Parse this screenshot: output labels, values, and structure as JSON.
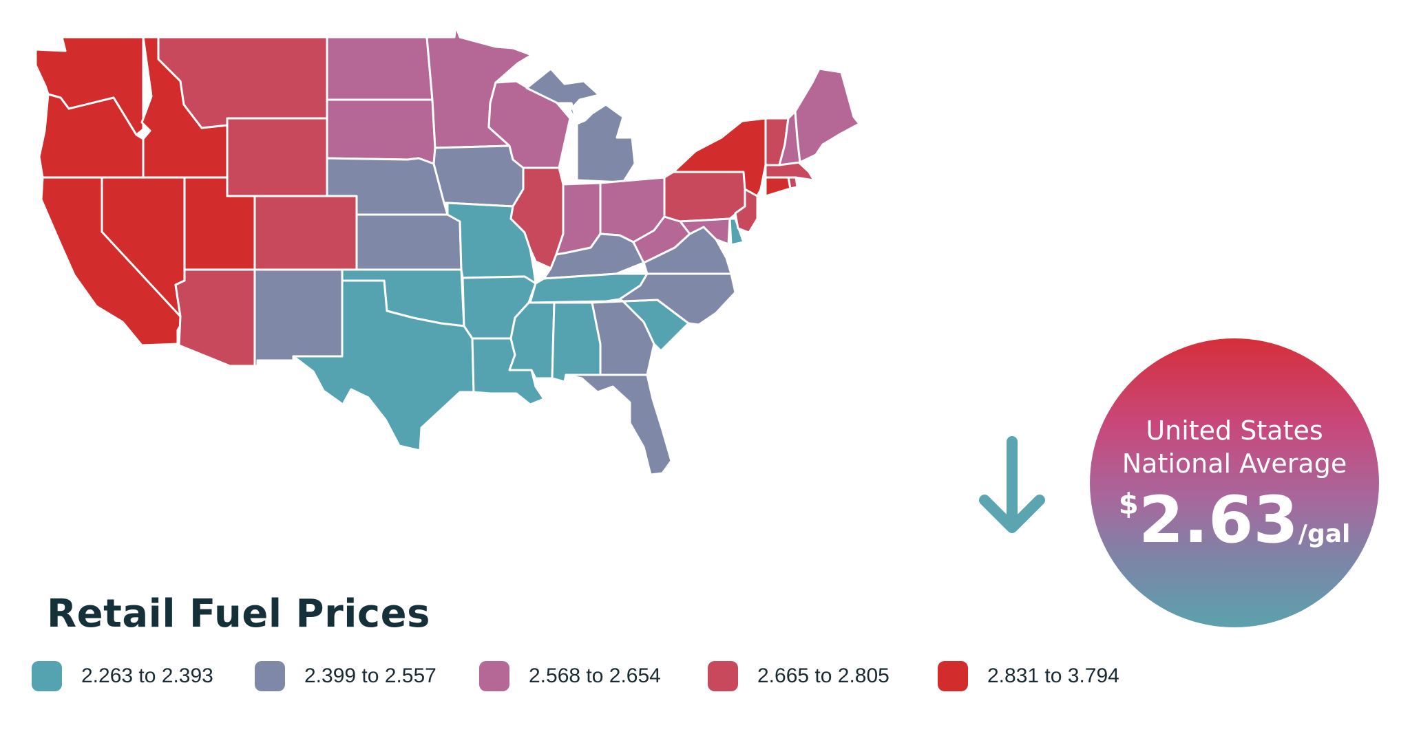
{
  "title": "Retail Fuel Prices",
  "colors": {
    "bin1": "#55a2b0",
    "bin2": "#7f88a6",
    "bin3": "#b56795",
    "bin4": "#c8485c",
    "bin5": "#d22c2c"
  },
  "legend": [
    {
      "label": "2.263 to 2.393",
      "color": "#55a2b0"
    },
    {
      "label": "2.399 to 2.557",
      "color": "#7f88a6"
    },
    {
      "label": "2.568 to 2.654",
      "color": "#b56795"
    },
    {
      "label": "2.665 to 2.805",
      "color": "#c8485c"
    },
    {
      "label": "2.831 to 3.794",
      "color": "#d22c2c"
    }
  ],
  "national": {
    "line1": "United States",
    "line2": "National Average",
    "currency": "$",
    "price": "2.63",
    "unit": "/gal",
    "trend": "down",
    "arrow_icon": "arrow-down-icon"
  },
  "state_bins": {
    "WA": 5,
    "OR": 5,
    "CA": 5,
    "NV": 5,
    "ID": 5,
    "UT": 5,
    "MT": 4,
    "WY": 4,
    "CO": 4,
    "AZ": 4,
    "NM": 2,
    "ND": 3,
    "SD": 3,
    "NE": 2,
    "KS": 2,
    "OK": 1,
    "TX": 1,
    "MN": 3,
    "IA": 2,
    "MO": 1,
    "AR": 1,
    "LA": 1,
    "WI": 3,
    "IL": 4,
    "MI": 2,
    "IN": 3,
    "OH": 3,
    "KY": 2,
    "TN": 1,
    "MS": 1,
    "AL": 1,
    "GA": 2,
    "FL": 2,
    "SC": 1,
    "NC": 2,
    "VA": 2,
    "WV": 3,
    "PA": 4,
    "NY": 5,
    "NJ": 4,
    "DE": 1,
    "MD": 3,
    "CT": 5,
    "RI": 4,
    "MA": 4,
    "VT": 4,
    "NH": 3,
    "ME": 3
  }
}
